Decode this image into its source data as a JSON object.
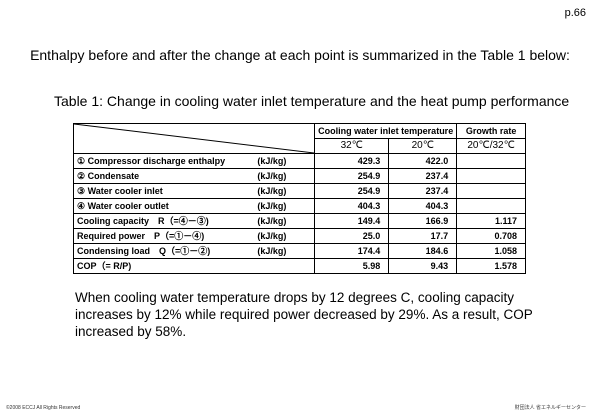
{
  "page": {
    "number": "p.66"
  },
  "intro": "Enthalpy before and after the change at each point is summarized in the Table 1 below:",
  "caption": "Table 1: Change in cooling water inlet temperature and the heat pump performance",
  "table": {
    "group_header": "Cooling water inlet temperature",
    "growth_header": "Growth rate",
    "col_32": "32℃",
    "col_20": "20℃",
    "col_ratio": "20℃/32℃",
    "rows": [
      {
        "label": "① Compressor discharge enthalpy",
        "unit": "(kJ/kg)",
        "v32": "429.3",
        "v20": "422.0",
        "growth": ""
      },
      {
        "label": "② Condensate",
        "unit": "(kJ/kg)",
        "v32": "254.9",
        "v20": "237.4",
        "growth": ""
      },
      {
        "label": "③ Water cooler inlet",
        "unit": "(kJ/kg)",
        "v32": "254.9",
        "v20": "237.4",
        "growth": ""
      },
      {
        "label": "④ Water cooler outlet",
        "unit": "(kJ/kg)",
        "v32": "404.3",
        "v20": "404.3",
        "growth": ""
      },
      {
        "label": "Cooling capacity　R（=④－③)",
        "unit": "(kJ/kg)",
        "v32": "149.4",
        "v20": "166.9",
        "growth": "1.117"
      },
      {
        "label": "Required power　P（=①－④)",
        "unit": "(kJ/kg)",
        "v32": "25.0",
        "v20": "17.7",
        "growth": "0.708"
      },
      {
        "label": "Condensing load　Q（=①－②)",
        "unit": "(kJ/kg)",
        "v32": "174.4",
        "v20": "184.6",
        "growth": "1.058"
      },
      {
        "label": "COP（= R/P)",
        "unit": "",
        "v32": "5.98",
        "v20": "9.43",
        "growth": "1.578"
      }
    ]
  },
  "conclusion": "When cooling water temperature drops by 12 degrees C, cooling capacity increases by 12% while required power decreased by 29%. As a result, COP increased by 58%.",
  "footer": {
    "copyright": "©2008 ECCJ All Rights Reserved",
    "org": "財団法人 省エネルギーセンター"
  }
}
